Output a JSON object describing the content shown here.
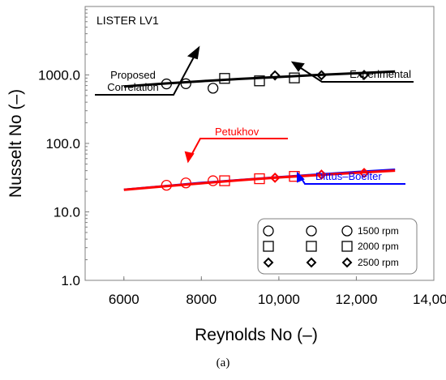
{
  "chart_data": {
    "type": "scatter",
    "title": "LISTER LV1",
    "xlabel": "Reynolds No (–)",
    "ylabel": "Nusselt No (–)",
    "xlim": [
      5000,
      14000
    ],
    "ylim": [
      1,
      10000
    ],
    "yscale": "log",
    "x_ticks": [
      6000,
      8000,
      10000,
      12000,
      14000
    ],
    "x_tick_labels": [
      "6000",
      "8000",
      "10,000",
      "12,000",
      "14,000"
    ],
    "y_ticks": [
      1,
      10,
      100,
      1000
    ],
    "y_tick_labels": [
      "1.0",
      "10.0",
      "100.0",
      "1000.0"
    ],
    "grid": false,
    "lines": [
      {
        "name": "Proposed Correlation",
        "color": "#000000",
        "x": [
          6000,
          7000,
          8000,
          9000,
          10000,
          11000,
          12000,
          13000
        ],
        "y": [
          680,
          745,
          810,
          875,
          935,
          1000,
          1060,
          1120
        ]
      },
      {
        "name": "Dittus–Boelter",
        "color": "#0000ff",
        "x": [
          6000,
          7000,
          8000,
          9000,
          10000,
          11000,
          12000,
          13000
        ],
        "y": [
          21.3,
          23.9,
          26.8,
          29.6,
          32.5,
          35.5,
          38.6,
          41.8
        ]
      },
      {
        "name": "Petukhov",
        "color": "#ff0000",
        "x": [
          6000,
          7000,
          8000,
          9000,
          10000,
          11000,
          12000,
          13000
        ],
        "y": [
          21.0,
          23.5,
          26.2,
          29.0,
          31.8,
          34.5,
          37.3,
          40.0
        ]
      }
    ],
    "series": [
      {
        "name": "1500 rpm",
        "marker": "circle",
        "color": "#000000",
        "x": [
          7100,
          7600,
          8300
        ],
        "y": [
          740,
          745,
          640
        ]
      },
      {
        "name": "2000 rpm",
        "marker": "square",
        "color": "#000000",
        "x": [
          8600,
          9500,
          10400
        ],
        "y": [
          890,
          820,
          905
        ]
      },
      {
        "name": "2500 rpm",
        "marker": "diamond",
        "color": "#000000",
        "x": [
          9900,
          11100,
          12200
        ],
        "y": [
          985,
          990,
          1000
        ]
      },
      {
        "name": "1500 rpm",
        "marker": "circle",
        "color": "#ff0000",
        "x": [
          7100,
          7600,
          8300
        ],
        "y": [
          24.5,
          26.5,
          28.5
        ]
      },
      {
        "name": "2000 rpm",
        "marker": "square",
        "color": "#ff0000",
        "x": [
          8600,
          9500,
          10400
        ],
        "y": [
          28.5,
          30.5,
          33
        ]
      },
      {
        "name": "2500 rpm",
        "marker": "diamond",
        "color": "#ff0000",
        "x": [
          9900,
          11100,
          12200
        ],
        "y": [
          31.5,
          35,
          37
        ]
      }
    ],
    "annotations": [
      {
        "text": "Proposed",
        "color": "#000000"
      },
      {
        "text": "Correlation",
        "color": "#000000"
      },
      {
        "text": "Experimental",
        "color": "#000000"
      },
      {
        "text": "Petukhov",
        "color": "#ff0000"
      },
      {
        "text": "Dittus–Boelter",
        "color": "#0000ff"
      }
    ],
    "legend": {
      "placement": "bottom-right",
      "rows": [
        {
          "marker": "circle",
          "label": "1500 rpm"
        },
        {
          "marker": "square",
          "label": "2000 rpm"
        },
        {
          "marker": "diamond",
          "label": "2500 rpm"
        }
      ]
    }
  },
  "caption": "(a)"
}
